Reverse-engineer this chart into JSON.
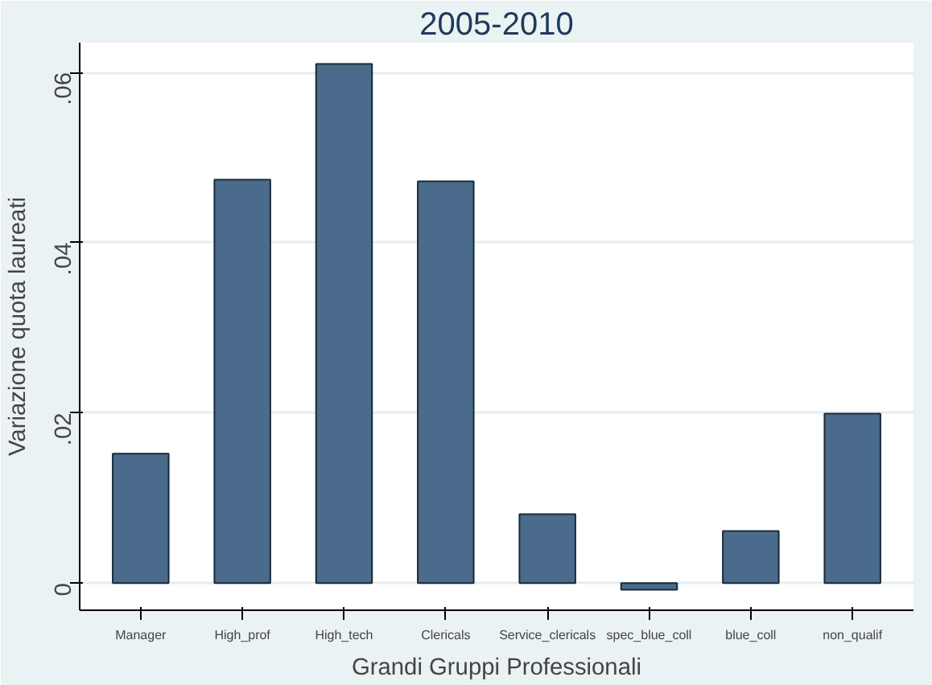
{
  "chart_data": {
    "type": "bar",
    "title": "2005-2010",
    "xlabel": "Grandi Gruppi Professionali",
    "ylabel": "Variazione quota laureati",
    "categories": [
      "Manager",
      "High_prof",
      "High_tech",
      "Clericals",
      "Service_clericals",
      "spec_blue_coll",
      "blue_coll",
      "non_qualif"
    ],
    "values": [
      0.0152,
      0.0474,
      0.061,
      0.0472,
      0.0081,
      -0.0008,
      0.0061,
      0.0199
    ],
    "color": "#4a6b8b",
    "ylim": [
      -0.0032,
      0.0635
    ],
    "yticks": [
      0,
      {
        "value": 0.02,
        "label": ".02"
      },
      {
        "value": 0.04,
        "label": ".04"
      },
      {
        "value": 0.06,
        "label": ".06"
      }
    ],
    "grid": "y"
  }
}
